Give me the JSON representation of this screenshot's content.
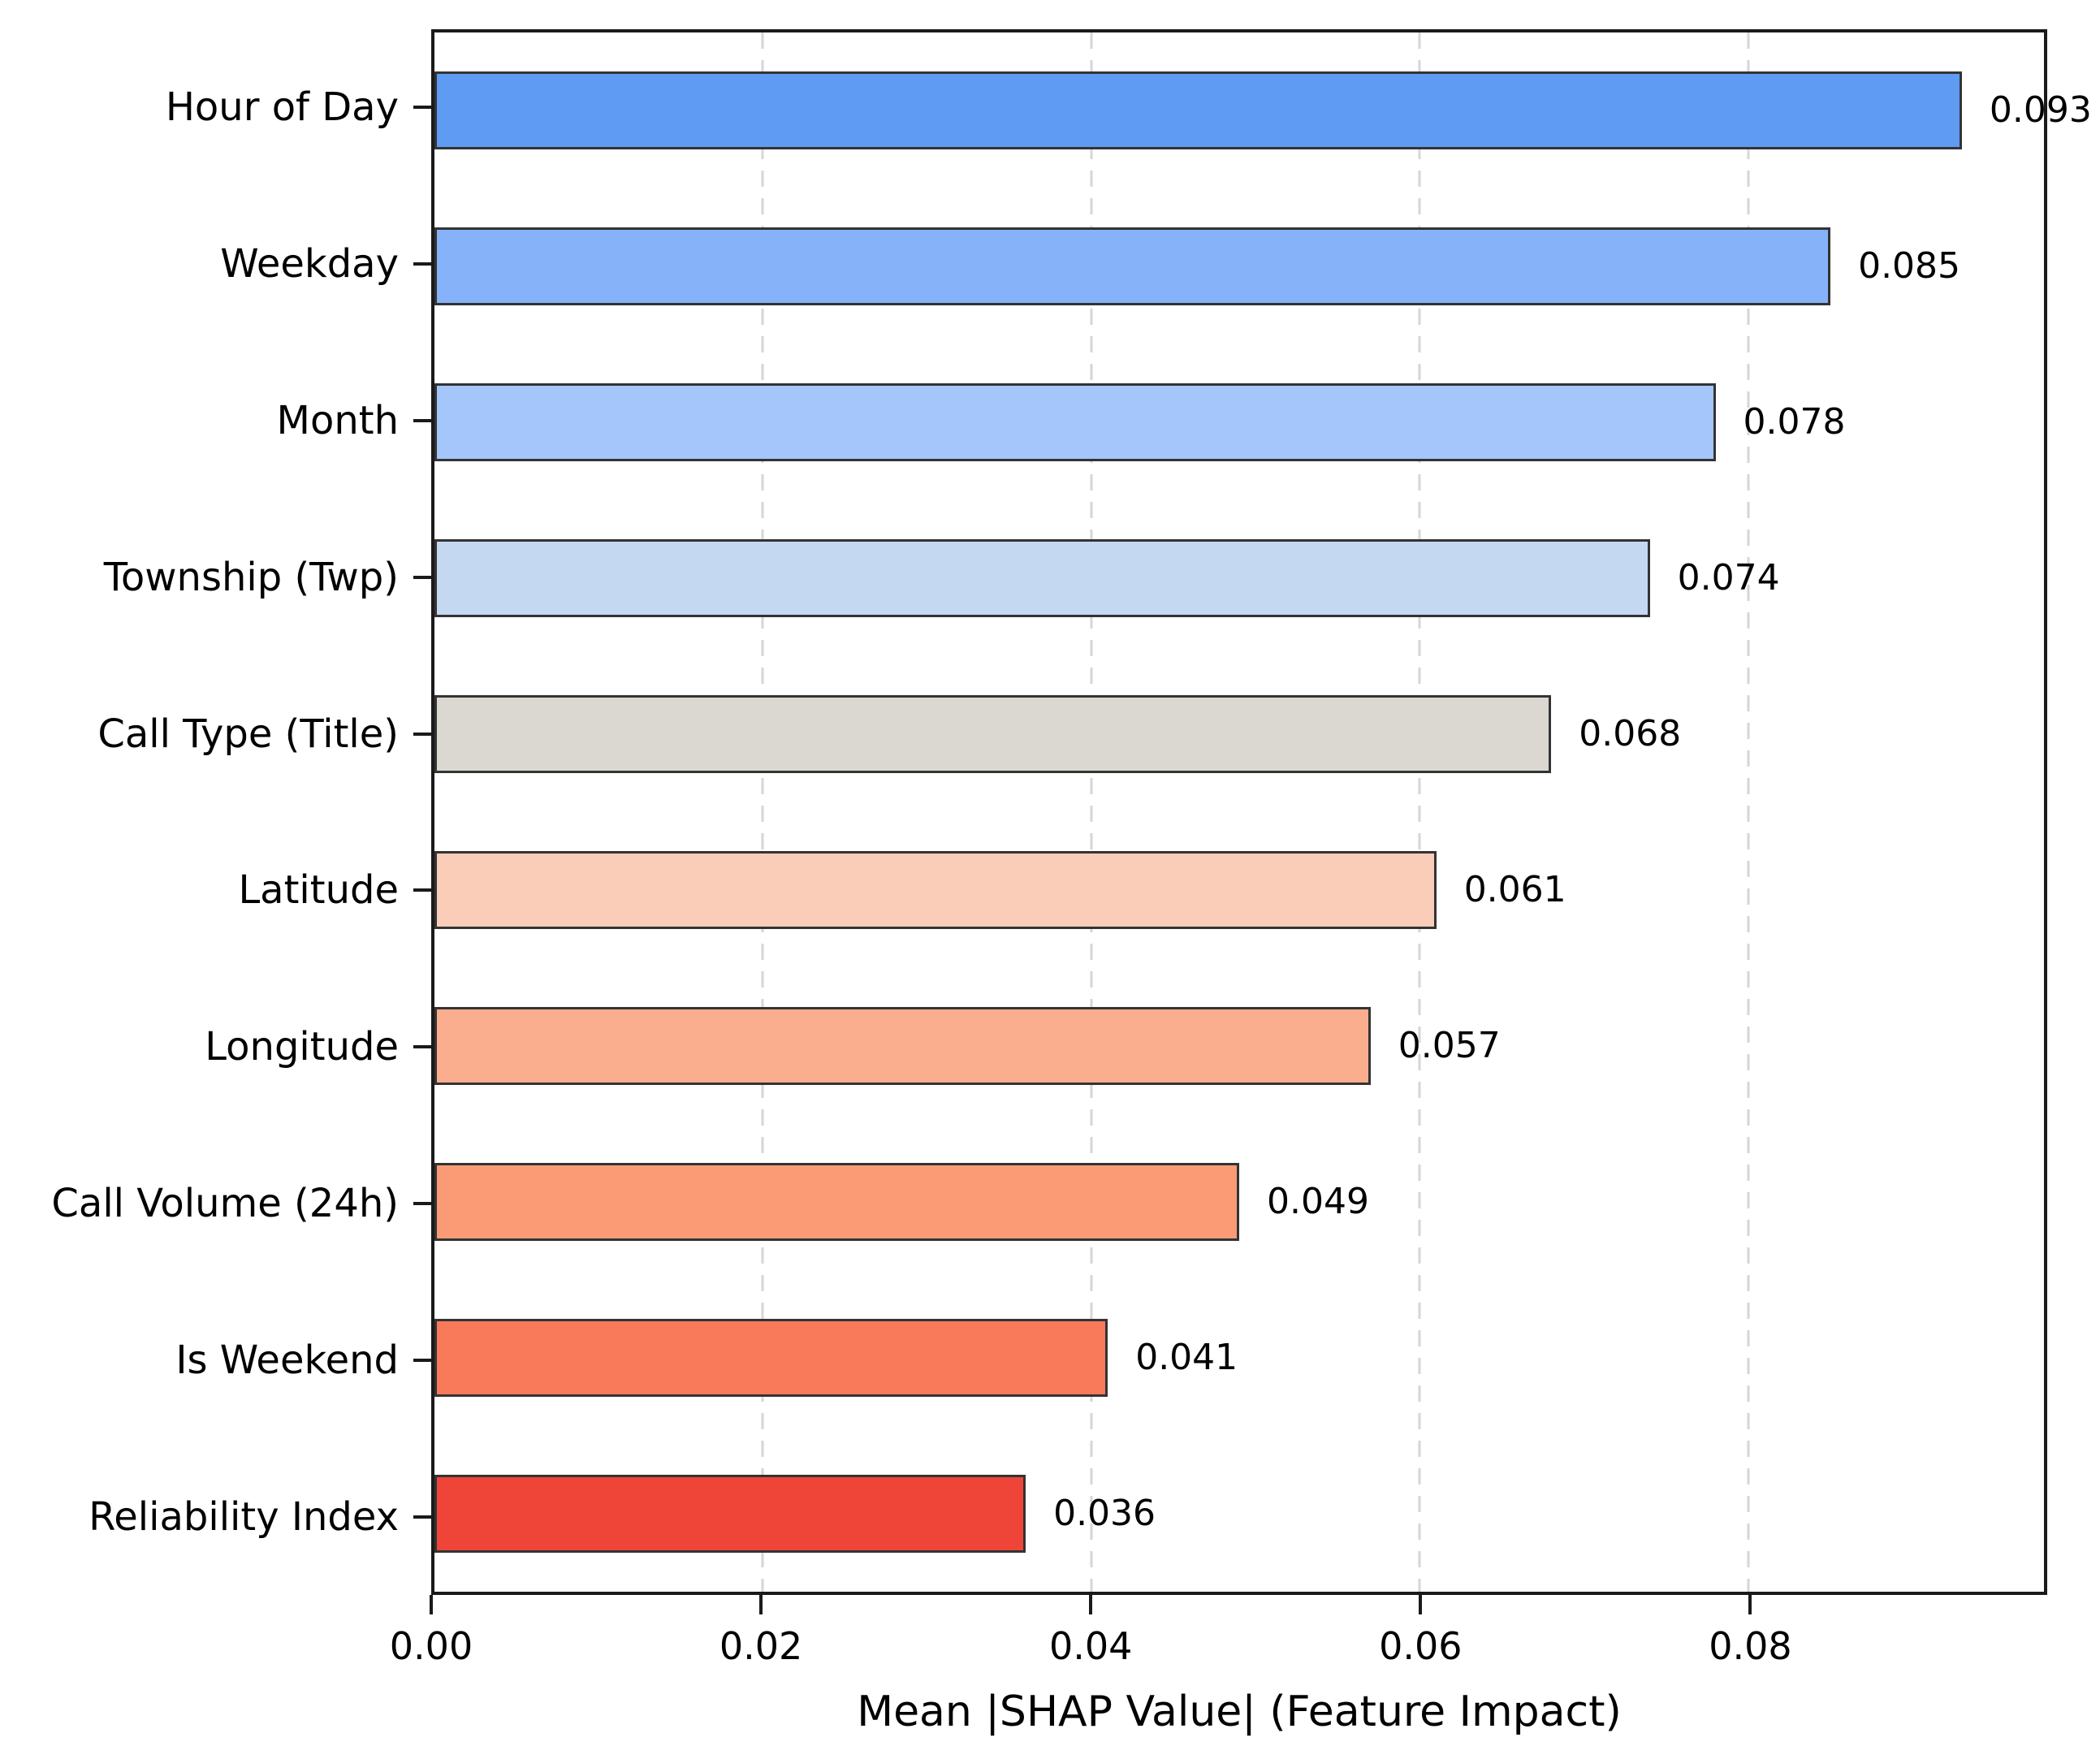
{
  "chart_data": {
    "type": "bar",
    "orientation": "horizontal",
    "xlabel": "Mean |SHAP Value| (Feature Impact)",
    "ylabel": "",
    "title": "",
    "categories": [
      "Hour of Day",
      "Weekday",
      "Month",
      "Township (Twp)",
      "Call Type (Title)",
      "Latitude",
      "Longitude",
      "Call Volume (24h)",
      "Is Weekend",
      "Reliability Index"
    ],
    "values": [
      0.093,
      0.085,
      0.078,
      0.074,
      0.068,
      0.061,
      0.057,
      0.049,
      0.041,
      0.036
    ],
    "value_labels": [
      "0.093",
      "0.085",
      "0.078",
      "0.074",
      "0.068",
      "0.061",
      "0.057",
      "0.049",
      "0.041",
      "0.036"
    ],
    "bar_colors": [
      "#5F9AF3",
      "#85B2F8",
      "#A4C6FA",
      "#C5D8F1",
      "#DBD8D2",
      "#FACDB9",
      "#FBAE8E",
      "#FB9B76",
      "#F87A5B",
      "#EF4538"
    ],
    "xlim": [
      0,
      0.098
    ],
    "xticks": [
      0.0,
      0.02,
      0.04,
      0.06,
      0.08
    ],
    "xtick_labels": [
      "0.00",
      "0.02",
      "0.04",
      "0.06",
      "0.08"
    ],
    "gridline_ticks": [
      0.02,
      0.04,
      0.06,
      0.08
    ],
    "grid": "vertical-dashed",
    "legend_position": "none"
  },
  "style": {
    "grid_color": "#d6d6d6",
    "bar_edge_color": "#333333",
    "spine_color": "#1a1a1a",
    "text_color": "#000000",
    "background": "#ffffff"
  }
}
